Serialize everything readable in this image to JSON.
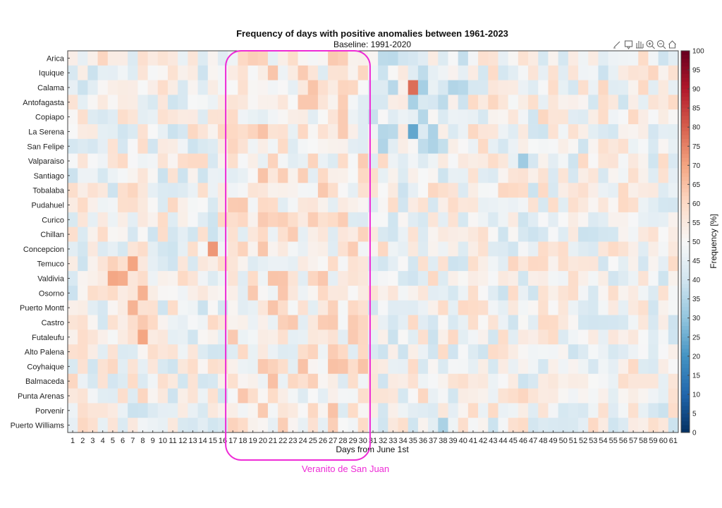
{
  "chart_data": {
    "type": "heatmap",
    "title": "Frequency of days with positive anomalies between 1961-2023",
    "subtitle": "Baseline: 1991-2020",
    "xlabel": "Days from June 1st",
    "colorbar_label": "Frequency [%]",
    "color_range": [
      0,
      100
    ],
    "colorbar_ticks": [
      0,
      5,
      10,
      15,
      20,
      25,
      30,
      35,
      40,
      45,
      50,
      55,
      60,
      65,
      70,
      75,
      80,
      85,
      90,
      95,
      100
    ],
    "colormap": [
      "#053061",
      "#2166ac",
      "#4393c3",
      "#92c5de",
      "#d1e5f0",
      "#f7f7f7",
      "#fddbc7",
      "#f4a582",
      "#d6604d",
      "#b2182b",
      "#67001f"
    ],
    "x_ticks": [
      1,
      2,
      3,
      4,
      5,
      6,
      7,
      8,
      9,
      10,
      11,
      12,
      13,
      14,
      15,
      16,
      17,
      18,
      19,
      20,
      21,
      22,
      23,
      24,
      25,
      26,
      27,
      28,
      29,
      30,
      31,
      32,
      33,
      34,
      35,
      36,
      37,
      38,
      39,
      40,
      41,
      42,
      43,
      44,
      45,
      46,
      47,
      48,
      49,
      50,
      51,
      52,
      53,
      54,
      55,
      56,
      57,
      58,
      59,
      60,
      61
    ],
    "rows": [
      "Arica",
      "Iquique",
      "Calama",
      "Antofagasta",
      "Copiapo",
      "La Serena",
      "San Felipe",
      "Valparaiso",
      "Santiago",
      "Tobalaba",
      "Pudahuel",
      "Curico",
      "Chillan",
      "Concepcion",
      "Temuco",
      "Valdivia",
      "Osorno",
      "Puerto Montt",
      "Castro",
      "Futaleufu",
      "Alto Palena",
      "Coyhaique",
      "Balmaceda",
      "Punta Arenas",
      "Porvenir",
      "Puerto Williams"
    ],
    "notable_values": [
      {
        "station": "Calama",
        "day": 35,
        "value": 78
      },
      {
        "station": "La Serena",
        "day": 35,
        "value": 24
      },
      {
        "station": "Temuco",
        "day": 7,
        "value": 70
      },
      {
        "station": "Concepcion",
        "day": 15,
        "value": 72
      },
      {
        "station": "Valparaiso",
        "day": 46,
        "value": 32
      },
      {
        "station": "Puerto Williams",
        "day": 38,
        "value": 34
      }
    ],
    "annotation": {
      "text": "Veranito de San Juan",
      "day_start": 17,
      "day_end": 30
    }
  },
  "colors": {
    "annotation": "#ee2bd6",
    "axis": "#333333"
  },
  "toolbar": [
    "brush-icon",
    "datatip-icon",
    "pan-icon",
    "zoom-in-icon",
    "zoom-out-icon",
    "home-icon"
  ]
}
